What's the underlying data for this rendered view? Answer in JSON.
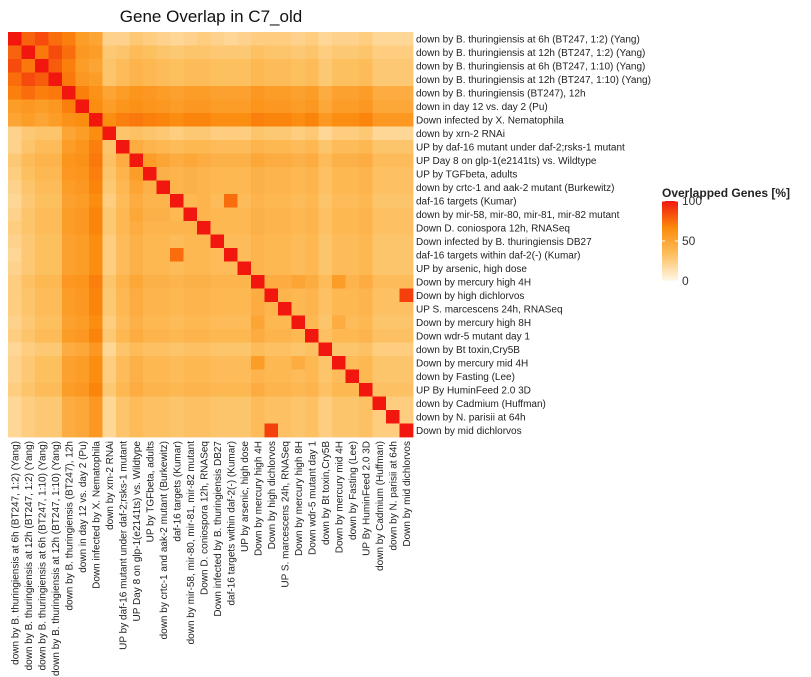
{
  "chart_data": {
    "type": "heatmap",
    "title": "Gene Overlap in C7_old",
    "xlabel": "",
    "ylabel": "",
    "labels": [
      "down by B. thuringiensis at 6h (BT247, 1:2) (Yang)",
      "down by B. thuringiensis at 12h (BT247, 1:2) (Yang)",
      "down by B. thuringiensis at 6h (BT247, 1:10) (Yang)",
      "down by B. thuringiensis at 12h (BT247, 1:10) (Yang)",
      "down by B. thuringiensis (BT247), 12h",
      "down in day 12 vs. day 2 (Pu)",
      "Down infected by X. Nematophila",
      "down by xrn-2 RNAi",
      "UP by daf-16 mutant under daf-2;rsks-1 mutant",
      "UP Day 8 on glp-1(e2141ts) vs. Wildtype",
      "UP by TGFbeta, adults",
      "down by crtc-1 and aak-2 mutant (Burkewitz)",
      "daf-16 targets (Kumar)",
      "down by mir-58, mir-80, mir-81, mir-82 mutant",
      "Down D. coniospora 12h, RNASeq",
      "Down infected by B. thuringiensis DB27",
      "daf-16 targets within daf-2(-) (Kumar)",
      "UP by arsenic, high dose",
      "Down by mercury high 4H",
      "Down by high dichlorvos",
      "UP S. marcescens 24h, RNASeq",
      "Down by mercury high 8H",
      "Down wdr-5 mutant day 1",
      "down by Bt toxin,Cry5B",
      "Down by mercury mid 4H",
      "down by Fasting (Lee)",
      "UP By HuminFeed 2.0 3D",
      "down by Cadmium (Huffman)",
      "down by N. parisii at 64h",
      "Down by mid dichlorvos"
    ],
    "values": [
      [
        100,
        78,
        85,
        75,
        70,
        55,
        50,
        22,
        22,
        28,
        25,
        22,
        20,
        22,
        25,
        22,
        20,
        22,
        25,
        25,
        25,
        22,
        25,
        20,
        22,
        22,
        25,
        20,
        20,
        20
      ],
      [
        78,
        100,
        72,
        85,
        75,
        58,
        55,
        28,
        30,
        35,
        33,
        30,
        28,
        30,
        30,
        28,
        28,
        28,
        32,
        30,
        30,
        28,
        30,
        25,
        28,
        28,
        30,
        25,
        25,
        25
      ],
      [
        85,
        72,
        100,
        80,
        70,
        55,
        50,
        30,
        35,
        40,
        38,
        35,
        33,
        35,
        35,
        33,
        33,
        33,
        38,
        35,
        35,
        33,
        35,
        28,
        33,
        33,
        35,
        28,
        28,
        28
      ],
      [
        75,
        85,
        80,
        100,
        72,
        58,
        55,
        30,
        35,
        40,
        38,
        35,
        33,
        35,
        35,
        33,
        33,
        33,
        38,
        35,
        35,
        33,
        35,
        28,
        33,
        33,
        35,
        28,
        28,
        28
      ],
      [
        70,
        75,
        70,
        72,
        100,
        70,
        62,
        50,
        55,
        60,
        58,
        55,
        52,
        55,
        55,
        52,
        52,
        52,
        58,
        55,
        55,
        52,
        55,
        45,
        52,
        52,
        55,
        45,
        45,
        45
      ],
      [
        55,
        58,
        55,
        58,
        70,
        100,
        65,
        55,
        60,
        62,
        60,
        58,
        55,
        58,
        58,
        55,
        55,
        55,
        60,
        58,
        58,
        55,
        58,
        48,
        55,
        55,
        58,
        48,
        48,
        48
      ],
      [
        50,
        55,
        50,
        55,
        62,
        65,
        100,
        65,
        70,
        72,
        70,
        68,
        65,
        68,
        68,
        65,
        65,
        65,
        70,
        68,
        68,
        65,
        68,
        58,
        65,
        65,
        68,
        58,
        58,
        58
      ],
      [
        22,
        28,
        30,
        30,
        50,
        55,
        65,
        100,
        30,
        32,
        30,
        28,
        25,
        28,
        28,
        25,
        25,
        25,
        30,
        28,
        28,
        25,
        28,
        20,
        25,
        25,
        28,
        20,
        20,
        20
      ],
      [
        22,
        30,
        35,
        35,
        55,
        60,
        70,
        30,
        100,
        45,
        40,
        38,
        35,
        38,
        38,
        35,
        35,
        35,
        40,
        38,
        38,
        35,
        38,
        30,
        35,
        35,
        38,
        30,
        30,
        30
      ],
      [
        28,
        35,
        40,
        40,
        60,
        62,
        72,
        32,
        45,
        100,
        55,
        50,
        45,
        48,
        45,
        42,
        42,
        42,
        48,
        45,
        45,
        42,
        45,
        35,
        42,
        42,
        45,
        35,
        35,
        35
      ],
      [
        25,
        33,
        38,
        38,
        58,
        60,
        70,
        30,
        40,
        55,
        100,
        42,
        40,
        42,
        40,
        38,
        38,
        38,
        42,
        40,
        40,
        38,
        40,
        32,
        38,
        38,
        40,
        32,
        32,
        32
      ],
      [
        22,
        30,
        35,
        35,
        55,
        58,
        68,
        28,
        38,
        50,
        42,
        100,
        40,
        42,
        40,
        38,
        38,
        38,
        42,
        40,
        40,
        38,
        40,
        32,
        38,
        38,
        40,
        32,
        32,
        32
      ],
      [
        20,
        28,
        33,
        33,
        52,
        55,
        65,
        25,
        35,
        45,
        40,
        40,
        100,
        38,
        40,
        35,
        75,
        35,
        40,
        38,
        38,
        35,
        38,
        30,
        35,
        35,
        38,
        30,
        30,
        30
      ],
      [
        22,
        30,
        35,
        35,
        55,
        58,
        68,
        28,
        38,
        48,
        42,
        42,
        38,
        100,
        40,
        38,
        38,
        38,
        42,
        40,
        40,
        38,
        40,
        32,
        38,
        38,
        40,
        32,
        32,
        32
      ],
      [
        25,
        30,
        35,
        35,
        55,
        58,
        68,
        28,
        38,
        45,
        40,
        40,
        40,
        40,
        100,
        38,
        38,
        38,
        42,
        40,
        40,
        38,
        40,
        32,
        38,
        38,
        40,
        32,
        32,
        32
      ],
      [
        22,
        28,
        33,
        33,
        52,
        55,
        65,
        25,
        35,
        42,
        38,
        38,
        35,
        38,
        38,
        100,
        35,
        35,
        40,
        38,
        38,
        35,
        38,
        30,
        35,
        35,
        38,
        30,
        30,
        30
      ],
      [
        20,
        28,
        33,
        33,
        52,
        55,
        65,
        25,
        35,
        42,
        38,
        38,
        75,
        38,
        38,
        35,
        100,
        35,
        40,
        38,
        38,
        35,
        38,
        30,
        35,
        35,
        38,
        30,
        30,
        30
      ],
      [
        22,
        28,
        33,
        33,
        52,
        55,
        65,
        25,
        35,
        42,
        38,
        38,
        35,
        38,
        38,
        35,
        35,
        100,
        40,
        38,
        38,
        35,
        38,
        30,
        35,
        35,
        38,
        30,
        30,
        30
      ],
      [
        25,
        32,
        38,
        38,
        58,
        60,
        70,
        30,
        40,
        48,
        42,
        42,
        40,
        42,
        42,
        40,
        40,
        40,
        100,
        45,
        45,
        50,
        45,
        35,
        55,
        40,
        45,
        35,
        35,
        35
      ],
      [
        25,
        30,
        35,
        35,
        55,
        58,
        68,
        28,
        38,
        45,
        40,
        40,
        38,
        40,
        40,
        38,
        38,
        38,
        45,
        100,
        40,
        38,
        40,
        32,
        38,
        38,
        40,
        32,
        32,
        88
      ],
      [
        25,
        30,
        35,
        35,
        55,
        58,
        68,
        28,
        38,
        45,
        40,
        40,
        38,
        40,
        40,
        38,
        38,
        38,
        45,
        40,
        100,
        38,
        40,
        32,
        38,
        38,
        40,
        32,
        32,
        32
      ],
      [
        22,
        28,
        33,
        33,
        52,
        55,
        65,
        25,
        35,
        42,
        38,
        38,
        35,
        38,
        38,
        35,
        35,
        35,
        50,
        38,
        38,
        100,
        38,
        30,
        45,
        35,
        38,
        30,
        30,
        30
      ],
      [
        25,
        30,
        35,
        35,
        55,
        58,
        68,
        28,
        38,
        45,
        40,
        40,
        38,
        40,
        40,
        38,
        38,
        38,
        45,
        40,
        40,
        38,
        100,
        32,
        38,
        38,
        40,
        32,
        32,
        32
      ],
      [
        20,
        25,
        28,
        28,
        45,
        48,
        58,
        20,
        30,
        35,
        32,
        32,
        30,
        32,
        32,
        30,
        30,
        30,
        35,
        32,
        32,
        30,
        32,
        100,
        30,
        30,
        32,
        25,
        25,
        25
      ],
      [
        22,
        28,
        33,
        33,
        52,
        55,
        65,
        25,
        35,
        42,
        38,
        38,
        35,
        38,
        38,
        35,
        35,
        35,
        55,
        38,
        38,
        45,
        38,
        30,
        100,
        35,
        38,
        30,
        30,
        30
      ],
      [
        22,
        28,
        33,
        33,
        52,
        55,
        65,
        25,
        35,
        42,
        38,
        38,
        35,
        38,
        38,
        35,
        35,
        35,
        40,
        38,
        38,
        35,
        38,
        30,
        35,
        100,
        38,
        30,
        30,
        30
      ],
      [
        25,
        30,
        35,
        35,
        55,
        58,
        68,
        28,
        38,
        45,
        40,
        40,
        38,
        40,
        40,
        38,
        38,
        38,
        45,
        40,
        40,
        38,
        40,
        32,
        38,
        38,
        100,
        32,
        32,
        32
      ],
      [
        20,
        25,
        28,
        28,
        45,
        48,
        58,
        20,
        30,
        35,
        32,
        32,
        30,
        32,
        32,
        30,
        30,
        30,
        35,
        32,
        32,
        30,
        32,
        25,
        30,
        30,
        32,
        100,
        25,
        25
      ],
      [
        20,
        25,
        28,
        28,
        45,
        48,
        58,
        20,
        30,
        35,
        32,
        32,
        30,
        32,
        32,
        30,
        30,
        30,
        35,
        32,
        32,
        30,
        32,
        25,
        30,
        30,
        32,
        25,
        100,
        25
      ],
      [
        20,
        25,
        28,
        28,
        45,
        48,
        58,
        20,
        30,
        35,
        32,
        32,
        30,
        32,
        32,
        30,
        30,
        30,
        35,
        88,
        32,
        30,
        32,
        25,
        30,
        30,
        32,
        25,
        25,
        100
      ]
    ],
    "legend": {
      "title": "Overlapped Genes [%]",
      "ticks": [
        100,
        50,
        0
      ],
      "range": [
        0,
        100
      ],
      "colors": [
        "#fff8ea",
        "#fdbf5d",
        "#fb8a0c",
        "#f2170e"
      ]
    },
    "grid": false
  }
}
